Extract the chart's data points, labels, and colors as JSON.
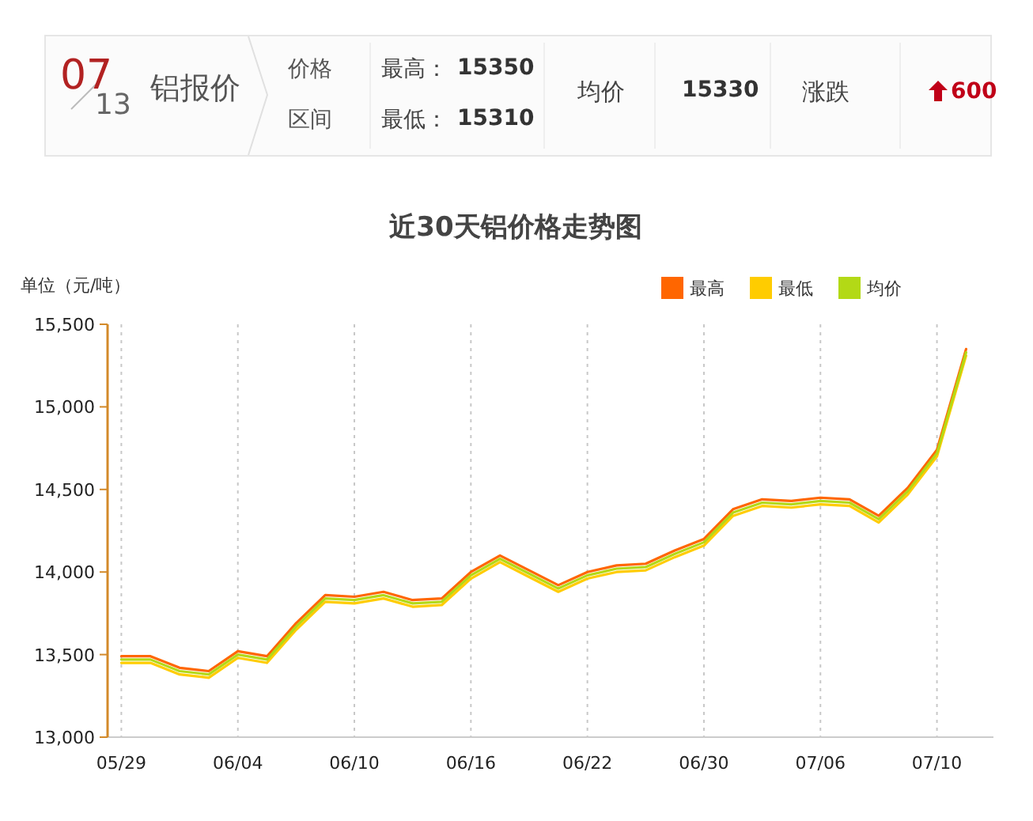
{
  "chart_data": [
    {
      "type": "other",
      "annotations": [
        "07",
        "13",
        "铝报价",
        "价格",
        "区间",
        "最高：",
        "15350",
        "最低：",
        "15310",
        "均价",
        "15330",
        "涨跌",
        "600"
      ]
    },
    {
      "type": "line",
      "title": "近30天铝价格走势图",
      "ylabel": "单位（元/吨）",
      "categories": [
        "05/29",
        null,
        null,
        null,
        "06/04",
        null,
        null,
        null,
        "06/10",
        null,
        null,
        null,
        "06/16",
        null,
        null,
        null,
        "06/22",
        null,
        null,
        null,
        "06/30",
        null,
        null,
        null,
        "07/06",
        null,
        null,
        null,
        "07/10",
        null
      ],
      "series": [
        {
          "name": "最高",
          "color": "#ff6600",
          "values": [
            13490,
            13490,
            13420,
            13400,
            13520,
            13490,
            13690,
            13860,
            13850,
            13880,
            13830,
            13840,
            14000,
            14100,
            14010,
            13920,
            14000,
            14040,
            14050,
            14130,
            14200,
            14380,
            14440,
            14430,
            14450,
            14440,
            14340,
            14510,
            14740,
            15350
          ]
        },
        {
          "name": "最低",
          "color": "#ffcc00",
          "values": [
            13450,
            13450,
            13380,
            13360,
            13480,
            13450,
            13650,
            13820,
            13810,
            13840,
            13790,
            13800,
            13960,
            14060,
            13970,
            13880,
            13960,
            14000,
            14010,
            14090,
            14160,
            14340,
            14400,
            14390,
            14410,
            14400,
            14300,
            14470,
            14700,
            15310
          ]
        },
        {
          "name": "均价",
          "color": "#b3d916",
          "values": [
            13470,
            13470,
            13400,
            13380,
            13500,
            13470,
            13670,
            13840,
            13830,
            13860,
            13810,
            13820,
            13980,
            14080,
            13990,
            13900,
            13980,
            14020,
            14030,
            14110,
            14180,
            14360,
            14420,
            14410,
            14430,
            14420,
            14320,
            14490,
            14720,
            15330
          ]
        }
      ],
      "ylim": [
        13000,
        15500
      ],
      "yticks": [
        {
          "value": 13000,
          "label": "13,000"
        },
        {
          "value": 13500,
          "label": "13,500"
        },
        {
          "value": 14000,
          "label": "14,000"
        },
        {
          "value": 14500,
          "label": "14,500"
        },
        {
          "value": 15000,
          "label": "15,000"
        },
        {
          "value": 15500,
          "label": "15,500"
        }
      ],
      "grid": "x",
      "legend": "top right",
      "marker": "none",
      "line_style": "solid"
    }
  ]
}
